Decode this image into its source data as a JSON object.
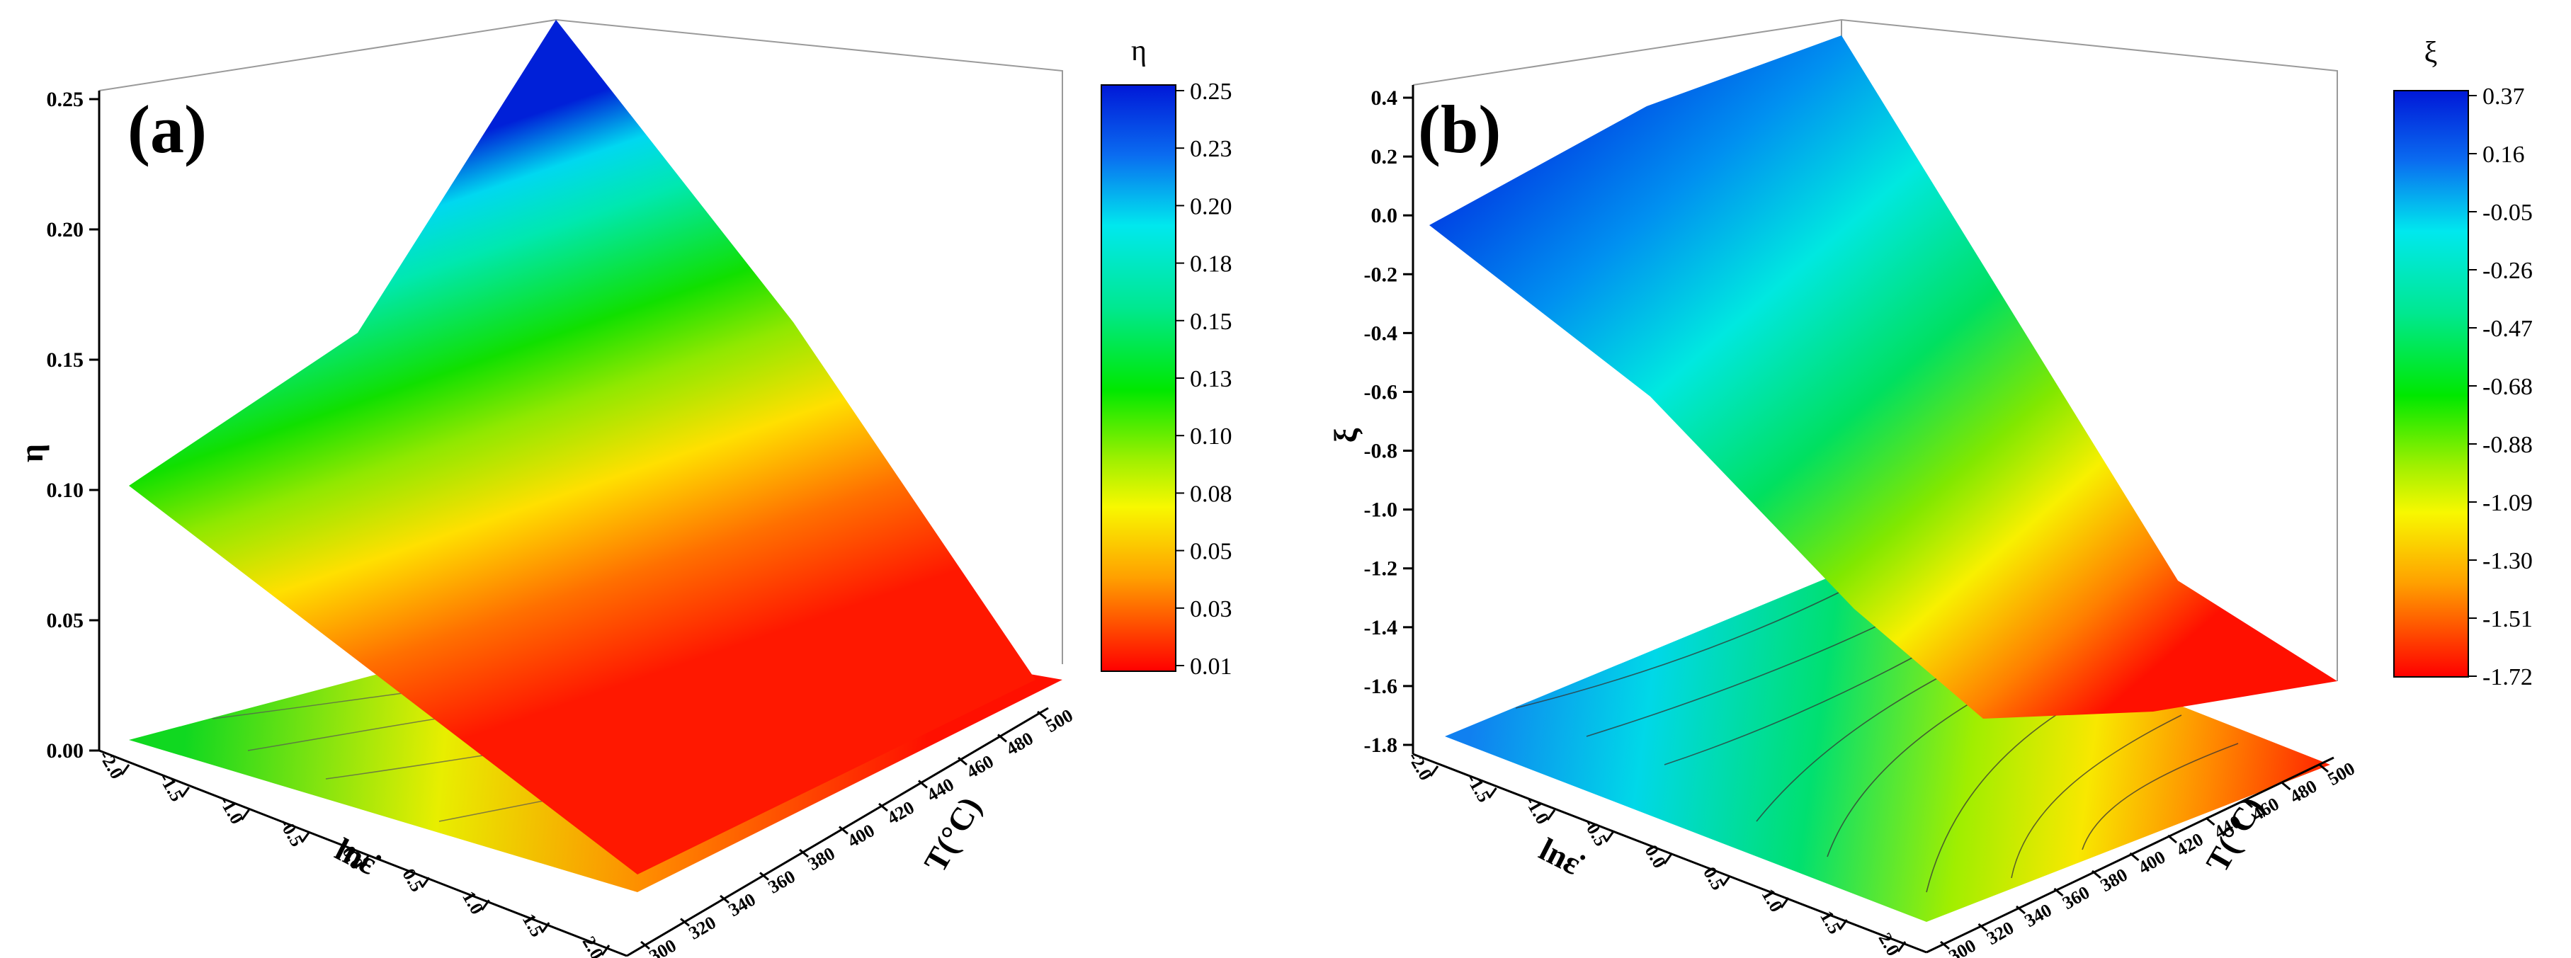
{
  "chart_data": [
    {
      "type": "surface3d",
      "panel_label": "(a)",
      "zlabel": "η",
      "xlabel": "lnε̇",
      "ylabel": "T(°C)",
      "zlim": [
        0.0,
        0.25
      ],
      "z_ticks": [
        "0.00",
        "0.05",
        "0.10",
        "0.15",
        "0.20",
        "0.25"
      ],
      "x_ticks": [
        "-2.0",
        "-1.5",
        "-1.0",
        "-0.5",
        "0.0",
        "0.5",
        "1.0",
        "1.5",
        "2.0"
      ],
      "y_ticks": [
        "300",
        "320",
        "340",
        "360",
        "380",
        "400",
        "420",
        "440",
        "460",
        "480",
        "500"
      ],
      "colorbar": {
        "title": "η",
        "ticks": [
          "0.25",
          "0.23",
          "0.20",
          "0.18",
          "0.15",
          "0.13",
          "0.10",
          "0.08",
          "0.05",
          "0.03",
          "0.01"
        ]
      },
      "corners": {
        "lnrate_-2_T_300": 0.1,
        "lnrate_-2_T_500": 0.25,
        "lnrate_2_T_300": 0.01,
        "lnrate_2_T_500": 0.02
      },
      "projected_contours": true
    },
    {
      "type": "surface3d",
      "panel_label": "(b)",
      "zlabel": "ξ",
      "xlabel": "lnε̇",
      "ylabel": "T(°C)",
      "zlim": [
        -1.8,
        0.4
      ],
      "z_ticks": [
        "-1.8",
        "-1.6",
        "-1.4",
        "-1.2",
        "-1.0",
        "-0.8",
        "-0.6",
        "-0.4",
        "-0.2",
        "0.0",
        "0.2",
        "0.4"
      ],
      "x_ticks": [
        "-2.0",
        "-1.5",
        "-1.0",
        "-0.5",
        "0.0",
        "0.5",
        "1.0",
        "1.5",
        "2.0"
      ],
      "y_ticks": [
        "300",
        "320",
        "340",
        "360",
        "380",
        "400",
        "420",
        "440",
        "460",
        "480",
        "500"
      ],
      "colorbar": {
        "title": "ξ",
        "ticks": [
          "0.37",
          "0.16",
          "-0.05",
          "-0.26",
          "-0.47",
          "-0.68",
          "-0.88",
          "-1.09",
          "-1.30",
          "-1.51",
          "-1.72"
        ]
      },
      "corners": {
        "lnrate_-2_T_300": 0.0,
        "lnrate_-2_T_500": 0.37,
        "lnrate_2_T_300": -1.5,
        "lnrate_2_T_500": -1.72
      },
      "projected_contours": true
    }
  ]
}
